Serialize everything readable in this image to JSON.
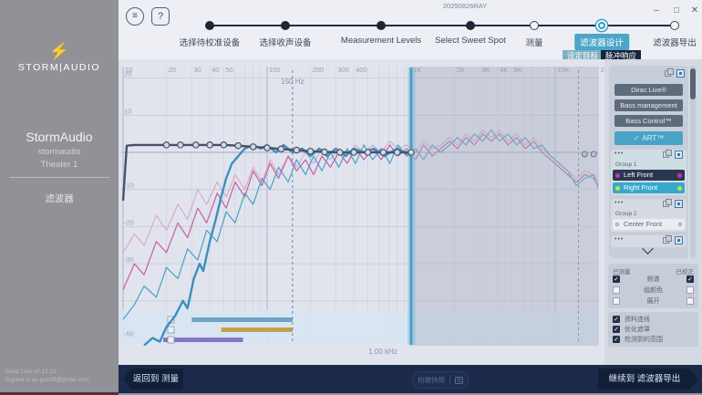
{
  "window": {
    "title": "20250826RAY",
    "controls": {
      "minimize": "–",
      "maximize": "□",
      "close": "✕"
    },
    "menu_icon": "≡",
    "help_label": "?"
  },
  "sidebar": {
    "bolt_icon": "⚡",
    "brand": "STORM|AUDIO",
    "product": "StormAudio",
    "account": "stormaudio",
    "theater": "Theater 1",
    "section": "滤波器",
    "version": "Dirac Live v3.13.13",
    "signed_in": "Signed in as goodfl@gmail.com"
  },
  "stepper": {
    "steps": [
      {
        "label": "选择待校准设备",
        "state": "done"
      },
      {
        "label": "选择收声设备",
        "state": "done"
      },
      {
        "label": "Measurement Levels",
        "state": "done"
      },
      {
        "label": "Select Sweet Spot",
        "state": "done"
      },
      {
        "label": "测量",
        "state": "todo"
      },
      {
        "label": "滤波器设计",
        "state": "current"
      },
      {
        "label": "滤波器导出",
        "state": "todo"
      }
    ],
    "subtabs": [
      {
        "label": "设定目标",
        "active": true
      },
      {
        "label": "脉冲响应",
        "active": false
      }
    ]
  },
  "chart": {
    "x_ticks": [
      {
        "f": 10,
        "label": "10"
      },
      {
        "f": 20,
        "label": "20"
      },
      {
        "f": 30,
        "label": "30"
      },
      {
        "f": 40,
        "label": "40"
      },
      {
        "f": 50,
        "label": "50"
      },
      {
        "f": 100,
        "label": "100"
      },
      {
        "f": 200,
        "label": "200"
      },
      {
        "f": 300,
        "label": "300"
      },
      {
        "f": 400,
        "label": "400"
      },
      {
        "f": 1000,
        "label": "1K"
      },
      {
        "f": 2000,
        "label": "2K"
      },
      {
        "f": 3000,
        "label": "3K"
      },
      {
        "f": 4000,
        "label": "4K"
      },
      {
        "f": 5000,
        "label": "5K"
      },
      {
        "f": 10000,
        "label": "10K"
      },
      {
        "f": 20000,
        "label": "20K"
      }
    ],
    "y_ticks": [
      {
        "db": 20,
        "label": "20"
      },
      {
        "db": 10,
        "label": "10"
      },
      {
        "db": -10,
        "label": "-10"
      },
      {
        "db": -20,
        "label": "-20"
      },
      {
        "db": -30,
        "label": "-30"
      },
      {
        "db": -50,
        "label": "-50"
      }
    ],
    "marker_150": "150 Hz",
    "marker_1k": "1.00 kHz"
  },
  "chart_data": {
    "type": "line",
    "x_axis": "frequency_hz_log",
    "xlim": [
      10,
      20000
    ],
    "ylabel": "dB",
    "ylim": [
      -52,
      22
    ],
    "grid": true,
    "curtain_hz": [
      1000,
      20000
    ],
    "cursor_hz": 1000,
    "guide_lines_hz": [
      150,
      14500
    ],
    "range_bars": [
      {
        "name": "group-high",
        "color": "#6fa3c8",
        "from_hz": 30,
        "to_hz": 150,
        "checked": false
      },
      {
        "name": "group-mid",
        "color": "#c2a14f",
        "from_hz": 48,
        "to_hz": 150,
        "checked": false
      },
      {
        "name": "group-low",
        "color": "#8478c4",
        "from_hz": 19,
        "to_hz": 68,
        "checked": false
      }
    ],
    "target_curve": {
      "name": "target",
      "color": "#46536a",
      "points": [
        [
          10,
          -13
        ],
        [
          10.6,
          1.8
        ],
        [
          12,
          2
        ],
        [
          20,
          2
        ],
        [
          32,
          2
        ],
        [
          40,
          2
        ],
        [
          50,
          2
        ],
        [
          63,
          1.8
        ],
        [
          80,
          1.5
        ],
        [
          100,
          1.2
        ],
        [
          125,
          0.9
        ],
        [
          160,
          0.6
        ],
        [
          200,
          0.3
        ],
        [
          250,
          0.1
        ],
        [
          320,
          0
        ],
        [
          1000,
          0
        ]
      ],
      "handles": [
        [
          20,
          2
        ],
        [
          25,
          2
        ],
        [
          32,
          2
        ],
        [
          40,
          2
        ],
        [
          50,
          2
        ],
        [
          63,
          1.8
        ],
        [
          80,
          1.5
        ],
        [
          100,
          1.2
        ],
        [
          125,
          0.9
        ],
        [
          160,
          0.6
        ],
        [
          200,
          0.3
        ],
        [
          250,
          0.1
        ],
        [
          320,
          0
        ],
        [
          400,
          0
        ],
        [
          500,
          0
        ],
        [
          640,
          0
        ],
        [
          800,
          0
        ],
        [
          1000,
          0
        ]
      ],
      "right_handles": [
        [
          16000,
          -0.5
        ],
        [
          18500,
          -0.5
        ]
      ]
    },
    "series": [
      {
        "name": "pink-light-measured",
        "color": "#d9a0c8",
        "width": 1,
        "points": [
          [
            10,
            -27
          ],
          [
            12,
            -22
          ],
          [
            14,
            -25
          ],
          [
            17,
            -17
          ],
          [
            20,
            -21
          ],
          [
            24,
            -14
          ],
          [
            28,
            -18
          ],
          [
            33,
            -10
          ],
          [
            38,
            -14
          ],
          [
            45,
            -8
          ],
          [
            52,
            -12
          ],
          [
            60,
            -6
          ],
          [
            70,
            -10
          ],
          [
            80,
            -4
          ],
          [
            92,
            -8
          ],
          [
            105,
            -2
          ],
          [
            120,
            -6
          ],
          [
            140,
            -1
          ],
          [
            160,
            -4
          ],
          [
            185,
            0
          ],
          [
            210,
            -3
          ],
          [
            240,
            1
          ],
          [
            275,
            -2
          ],
          [
            315,
            1
          ],
          [
            360,
            -1
          ],
          [
            410,
            2
          ],
          [
            470,
            0
          ],
          [
            540,
            2
          ],
          [
            620,
            0
          ],
          [
            710,
            3
          ],
          [
            810,
            1
          ],
          [
            930,
            2
          ],
          [
            1070,
            0
          ],
          [
            1220,
            3
          ],
          [
            1400,
            1
          ],
          [
            1600,
            2
          ],
          [
            1850,
            4
          ],
          [
            2100,
            2
          ],
          [
            2400,
            5
          ],
          [
            2750,
            3
          ],
          [
            3150,
            6
          ],
          [
            3600,
            4
          ],
          [
            4100,
            6
          ],
          [
            4700,
            3
          ],
          [
            5400,
            5
          ],
          [
            6200,
            2
          ],
          [
            7100,
            4
          ],
          [
            8100,
            1
          ],
          [
            9300,
            -1
          ],
          [
            10700,
            -3
          ],
          [
            12200,
            -5
          ],
          [
            14000,
            -7
          ],
          [
            16000,
            -5
          ],
          [
            18500,
            -6
          ],
          [
            20000,
            -8
          ]
        ]
      },
      {
        "name": "left-front-measured",
        "color": "#c45fa5",
        "width": 1.2,
        "points": [
          [
            10,
            -37
          ],
          [
            12,
            -30
          ],
          [
            14,
            -33
          ],
          [
            17,
            -24
          ],
          [
            20,
            -27
          ],
          [
            24,
            -19
          ],
          [
            28,
            -23
          ],
          [
            33,
            -15
          ],
          [
            38,
            -19
          ],
          [
            45,
            -11
          ],
          [
            52,
            -15
          ],
          [
            60,
            -8
          ],
          [
            70,
            -12
          ],
          [
            80,
            -5
          ],
          [
            92,
            -9
          ],
          [
            105,
            -3
          ],
          [
            120,
            -7
          ],
          [
            140,
            -1
          ],
          [
            160,
            -5
          ],
          [
            185,
            -2
          ],
          [
            210,
            -6
          ],
          [
            240,
            -1
          ],
          [
            275,
            -4
          ],
          [
            315,
            0
          ],
          [
            360,
            -3
          ],
          [
            410,
            1
          ],
          [
            470,
            -2
          ],
          [
            540,
            1
          ],
          [
            620,
            -2
          ],
          [
            710,
            2
          ],
          [
            810,
            -1
          ],
          [
            930,
            1
          ],
          [
            1070,
            -2
          ],
          [
            1220,
            2
          ],
          [
            1400,
            -1
          ],
          [
            1600,
            1
          ],
          [
            1850,
            3
          ],
          [
            2100,
            1
          ],
          [
            2400,
            4
          ],
          [
            2750,
            2
          ],
          [
            3150,
            5
          ],
          [
            3600,
            3
          ],
          [
            4100,
            5
          ],
          [
            4700,
            2
          ],
          [
            5400,
            4
          ],
          [
            6200,
            1
          ],
          [
            7100,
            3
          ],
          [
            8100,
            0
          ],
          [
            9300,
            -2
          ],
          [
            10700,
            -4
          ],
          [
            12200,
            -6
          ],
          [
            14000,
            -8
          ],
          [
            16000,
            -6
          ],
          [
            18500,
            -7
          ],
          [
            20000,
            -9
          ]
        ]
      },
      {
        "name": "right-front-measured",
        "color": "#45a3c6",
        "width": 1.2,
        "points": [
          [
            10,
            -45
          ],
          [
            12,
            -41
          ],
          [
            14,
            -36
          ],
          [
            17,
            -39
          ],
          [
            20,
            -31
          ],
          [
            24,
            -34
          ],
          [
            28,
            -26
          ],
          [
            33,
            -29
          ],
          [
            38,
            -21
          ],
          [
            45,
            -24
          ],
          [
            52,
            -16
          ],
          [
            60,
            -19
          ],
          [
            70,
            -11
          ],
          [
            80,
            -14
          ],
          [
            92,
            -7
          ],
          [
            105,
            -10
          ],
          [
            120,
            -4
          ],
          [
            140,
            -8
          ],
          [
            160,
            -2
          ],
          [
            185,
            -6
          ],
          [
            210,
            -1
          ],
          [
            240,
            -5
          ],
          [
            275,
            0
          ],
          [
            315,
            -4
          ],
          [
            360,
            1
          ],
          [
            410,
            -3
          ],
          [
            470,
            2
          ],
          [
            540,
            -2
          ],
          [
            620,
            1
          ],
          [
            710,
            -3
          ],
          [
            810,
            2
          ],
          [
            930,
            -1
          ],
          [
            1070,
            1
          ],
          [
            1220,
            -2
          ],
          [
            1400,
            2
          ],
          [
            1600,
            0
          ],
          [
            1850,
            2
          ],
          [
            2100,
            4
          ],
          [
            2400,
            2
          ],
          [
            2750,
            5
          ],
          [
            3150,
            3
          ],
          [
            3600,
            6
          ],
          [
            4100,
            3
          ],
          [
            4700,
            5
          ],
          [
            5400,
            2
          ],
          [
            6200,
            4
          ],
          [
            7100,
            1
          ],
          [
            8100,
            2
          ],
          [
            9300,
            -1
          ],
          [
            10700,
            -3
          ],
          [
            12200,
            -5
          ],
          [
            14000,
            -9
          ],
          [
            16000,
            -7
          ],
          [
            18500,
            -6
          ],
          [
            20000,
            -10
          ]
        ]
      },
      {
        "name": "subwoofer-corrected",
        "color": "#3d8fc2",
        "width": 2.4,
        "points": [
          [
            14,
            -52
          ],
          [
            16,
            -50
          ],
          [
            18,
            -51
          ],
          [
            20,
            -47
          ],
          [
            23,
            -44
          ],
          [
            26,
            -40
          ],
          [
            28,
            -42
          ],
          [
            31,
            -34
          ],
          [
            34,
            -30
          ],
          [
            36,
            -32
          ],
          [
            40,
            -24
          ],
          [
            44,
            -18
          ],
          [
            48,
            -12
          ],
          [
            52,
            -7
          ],
          [
            57,
            -3
          ],
          [
            63,
            -1
          ],
          [
            70,
            1
          ],
          [
            80,
            2
          ],
          [
            90,
            1
          ],
          [
            100,
            2
          ],
          [
            115,
            0
          ],
          [
            130,
            2
          ],
          [
            150,
            0
          ],
          [
            175,
            1
          ],
          [
            200,
            -1
          ],
          [
            230,
            1
          ],
          [
            260,
            -1
          ],
          [
            300,
            1
          ],
          [
            350,
            -1
          ],
          [
            400,
            1
          ],
          [
            470,
            0
          ],
          [
            550,
            1
          ],
          [
            650,
            -1
          ],
          [
            800,
            1
          ],
          [
            1000,
            -1
          ]
        ]
      }
    ]
  },
  "right_panel": {
    "overflow_glyph": "•••",
    "modules": [
      {
        "label": "Dirac Live®"
      },
      {
        "label": "Bass management"
      },
      {
        "label": "Bass Control™"
      }
    ],
    "art": {
      "label": "ART™",
      "check": "✓"
    },
    "groups": [
      {
        "name": "Group 1",
        "channels": [
          {
            "label": "Left Front",
            "dot": "#c438a6",
            "style": "dark",
            "row_bg": "#2b3752"
          },
          {
            "label": "Right Front",
            "dot": "#c6e04a",
            "style": "teal",
            "row_bg": "#38a9cd"
          }
        ]
      },
      {
        "name": "Group 2",
        "channels": [
          {
            "label": "Center Front",
            "dot": "",
            "style": "light",
            "row_bg": "#eaecf0"
          }
        ]
      }
    ],
    "legend": {
      "col_left": "已测量",
      "col_right": "已校正",
      "rows": [
        {
          "label": "频谱",
          "measured": true,
          "corrected": true
        },
        {
          "label": "组颜色",
          "measured": false,
          "corrected": false
        },
        {
          "label": "展开",
          "measured": false,
          "corrected": false
        }
      ]
    },
    "options": [
      {
        "label": "资料连线",
        "checked": true
      },
      {
        "label": "优化遮罩",
        "checked": true
      },
      {
        "label": "检测到的范围",
        "checked": true
      }
    ],
    "check_glyph": "✓"
  },
  "bottom_bar": {
    "back": "返回到 测量",
    "snapshot": "拍摄快照",
    "continue": "继续到 滤波器导出"
  }
}
